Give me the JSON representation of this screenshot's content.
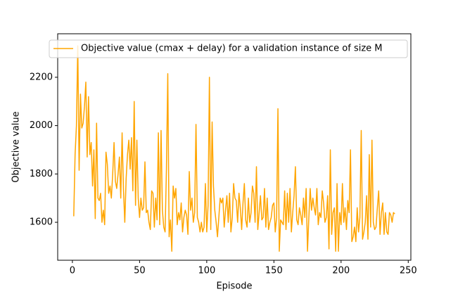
{
  "chart_data": {
    "type": "line",
    "xlabel": "Episode",
    "ylabel": "Objective value",
    "xlim": [
      -10.95,
      251.95
    ],
    "xticks": [
      0,
      50,
      100,
      150,
      200,
      250
    ],
    "ylim": [
      1443,
      2380
    ],
    "yticks": [
      1600,
      1800,
      2000,
      2200
    ],
    "legend": "upper left",
    "x": [
      1,
      2,
      3,
      4,
      5,
      6,
      7,
      8,
      9,
      10,
      11,
      12,
      13,
      14,
      15,
      16,
      17,
      18,
      19,
      20,
      21,
      22,
      23,
      24,
      25,
      26,
      27,
      28,
      29,
      30,
      31,
      32,
      33,
      34,
      35,
      36,
      37,
      38,
      39,
      40,
      41,
      42,
      43,
      44,
      45,
      46,
      47,
      48,
      49,
      50,
      51,
      52,
      53,
      54,
      55,
      56,
      57,
      58,
      59,
      60,
      61,
      62,
      63,
      64,
      65,
      66,
      67,
      68,
      69,
      70,
      71,
      72,
      73,
      74,
      75,
      76,
      77,
      78,
      79,
      80,
      81,
      82,
      83,
      84,
      85,
      86,
      87,
      88,
      89,
      90,
      91,
      92,
      93,
      94,
      95,
      96,
      97,
      98,
      99,
      100,
      101,
      102,
      103,
      104,
      105,
      106,
      107,
      108,
      109,
      110,
      111,
      112,
      113,
      114,
      115,
      116,
      117,
      118,
      119,
      120,
      121,
      122,
      123,
      124,
      125,
      126,
      127,
      128,
      129,
      130,
      131,
      132,
      133,
      134,
      135,
      136,
      137,
      138,
      139,
      140,
      141,
      142,
      143,
      144,
      145,
      146,
      147,
      148,
      149,
      150,
      151,
      152,
      153,
      154,
      155,
      156,
      157,
      158,
      159,
      160,
      161,
      162,
      163,
      164,
      165,
      166,
      167,
      168,
      169,
      170,
      171,
      172,
      173,
      174,
      175,
      176,
      177,
      178,
      179,
      180,
      181,
      182,
      183,
      184,
      185,
      186,
      187,
      188,
      189,
      190,
      191,
      192,
      193,
      194,
      195,
      196,
      197,
      198,
      199,
      200,
      201,
      202,
      203,
      204,
      205,
      206,
      207,
      208,
      209,
      210,
      211,
      212,
      213,
      214,
      215,
      216,
      217,
      218,
      219,
      220,
      221,
      222,
      223,
      224,
      225,
      226,
      227,
      228,
      229,
      230,
      231,
      232,
      233,
      234,
      235,
      236,
      237,
      238,
      239,
      240
    ],
    "series": [
      {
        "name": "Objective value (cmax + delay) for a validation instance of size M",
        "color": "#ffa500",
        "values": [
          1625,
          1880,
          2000,
          2330,
          1815,
          2130,
          1990,
          2010,
          2080,
          2180,
          1870,
          2120,
          1880,
          1930,
          1750,
          1900,
          1615,
          2010,
          1700,
          1690,
          1720,
          1600,
          1650,
          1590,
          1890,
          1840,
          1720,
          1750,
          1700,
          1800,
          1930,
          1770,
          1740,
          1800,
          1870,
          1700,
          1970,
          1740,
          1600,
          1780,
          1880,
          1940,
          1820,
          1950,
          1730,
          2100,
          1670,
          1940,
          1700,
          1620,
          1700,
          1650,
          1660,
          1850,
          1640,
          1650,
          1600,
          1570,
          1730,
          1720,
          1580,
          1700,
          1610,
          1970,
          1590,
          1980,
          1650,
          1580,
          1560,
          1820,
          2215,
          1540,
          1610,
          1480,
          1750,
          1700,
          1740,
          1590,
          1640,
          1610,
          1680,
          1560,
          1620,
          1650,
          1630,
          1550,
          1810,
          1650,
          1700,
          1600,
          1640,
          2005,
          1620,
          1600,
          1560,
          1600,
          1560,
          1580,
          1760,
          1560,
          1670,
          2200,
          1570,
          2015,
          1750,
          1650,
          1600,
          1540,
          1620,
          1700,
          1680,
          1700,
          1580,
          1650,
          1710,
          1600,
          1720,
          1560,
          1620,
          1760,
          1700,
          1690,
          1600,
          1720,
          1660,
          1570,
          1680,
          1760,
          1610,
          1580,
          1700,
          1600,
          1640,
          1750,
          1720,
          1600,
          1830,
          1570,
          1640,
          1710,
          1610,
          1620,
          1740,
          1580,
          1700,
          1570,
          1600,
          1620,
          1670,
          1680,
          1560,
          1620,
          2070,
          1480,
          1610,
          1600,
          1590,
          1730,
          1570,
          1720,
          1600,
          1740,
          1560,
          1640,
          1710,
          1830,
          1610,
          1590,
          1660,
          1630,
          1590,
          1700,
          1620,
          1740,
          1480,
          1620,
          1740,
          1650,
          1700,
          1660,
          1630,
          1740,
          1590,
          1640,
          1620,
          1730,
          1680,
          1600,
          1620,
          1710,
          1490,
          1900,
          1550,
          1640,
          1660,
          1480,
          1760,
          1480,
          1640,
          1590,
          1760,
          1600,
          1660,
          1570,
          1690,
          1640,
          1900,
          1520,
          1540,
          1580,
          1520,
          1660,
          1560,
          1620,
          1980,
          1530,
          1560,
          1600,
          1710,
          1530,
          1880,
          1580,
          1940,
          1600,
          1570,
          1580,
          1660,
          1730,
          1550,
          1640,
          1680,
          1550,
          1640,
          1560,
          1550,
          1640,
          1630,
          1600,
          1640,
          1635
        ]
      }
    ]
  }
}
